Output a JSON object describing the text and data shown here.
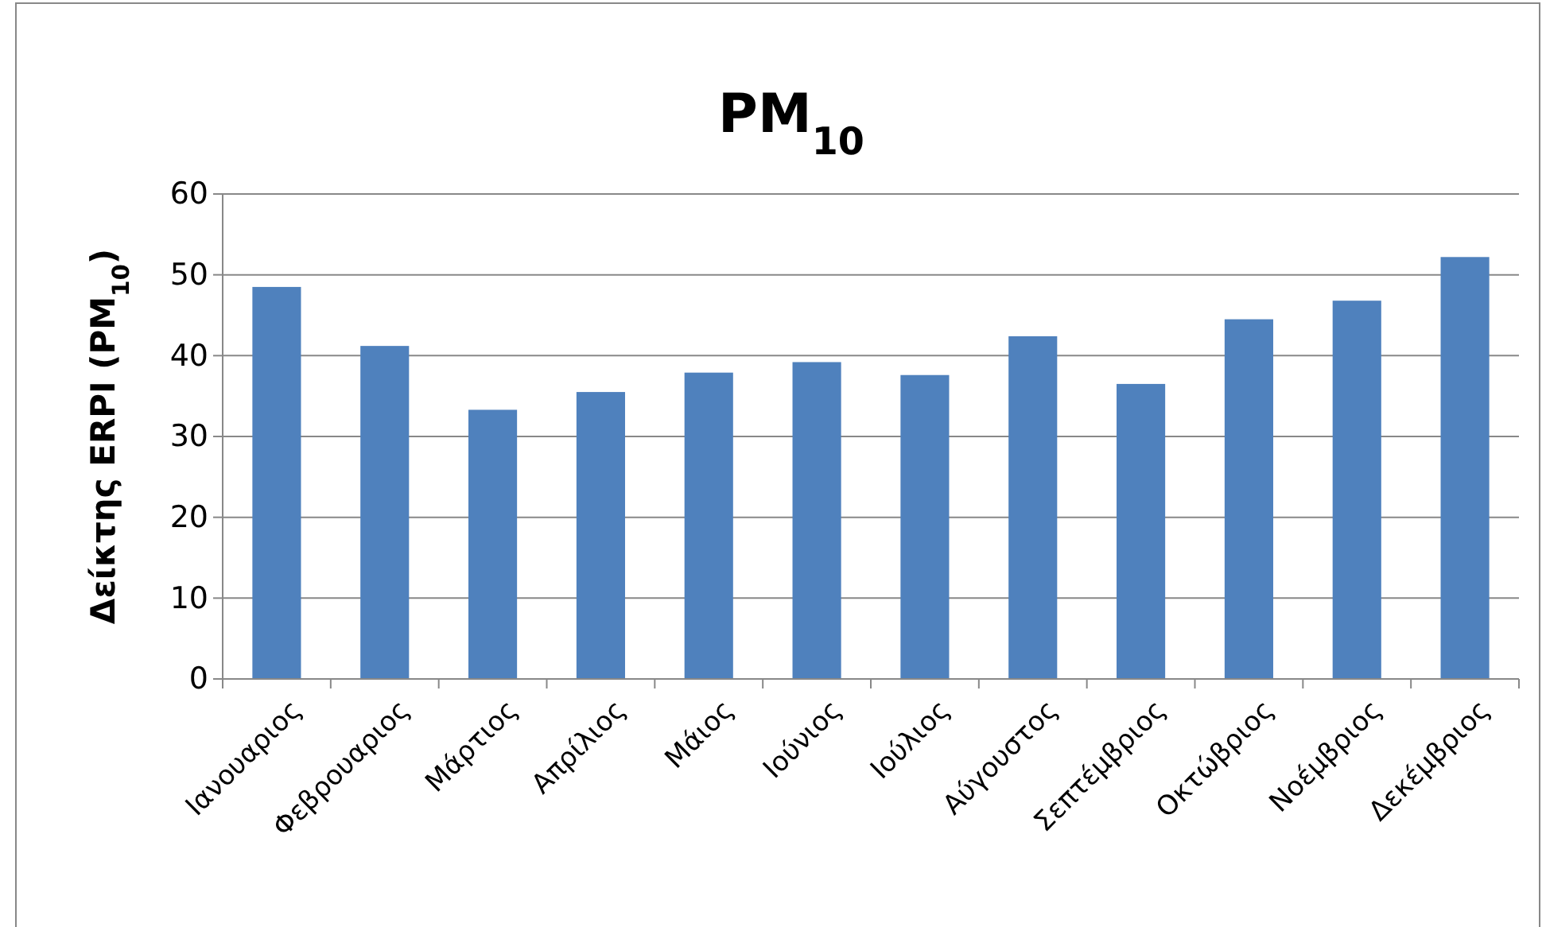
{
  "chart_data": {
    "type": "bar",
    "title": "PM$_{10}$",
    "ylabel": "Δείκτης ERPI (PM$_{10}$)",
    "categories": [
      "Ιανουαριος",
      "Φεβρουαριος",
      "Μάρτιος",
      "Απρίλιος",
      "Μάιος",
      "Ιούνιος",
      "Ιούλιος",
      "Αύγουστος",
      "Σεπτέμβριος",
      "Οκτώβριος",
      "Νοέμβριος",
      "Δεκέμβριος"
    ],
    "values": [
      48.5,
      41.2,
      33.3,
      35.5,
      37.9,
      39.2,
      37.6,
      42.4,
      36.5,
      44.5,
      46.8,
      52.2
    ],
    "color": "#4f81bd",
    "ylim": [
      0,
      60
    ],
    "yticks": [
      0,
      10,
      20,
      30,
      40,
      50,
      60
    ],
    "grid": "y"
  }
}
